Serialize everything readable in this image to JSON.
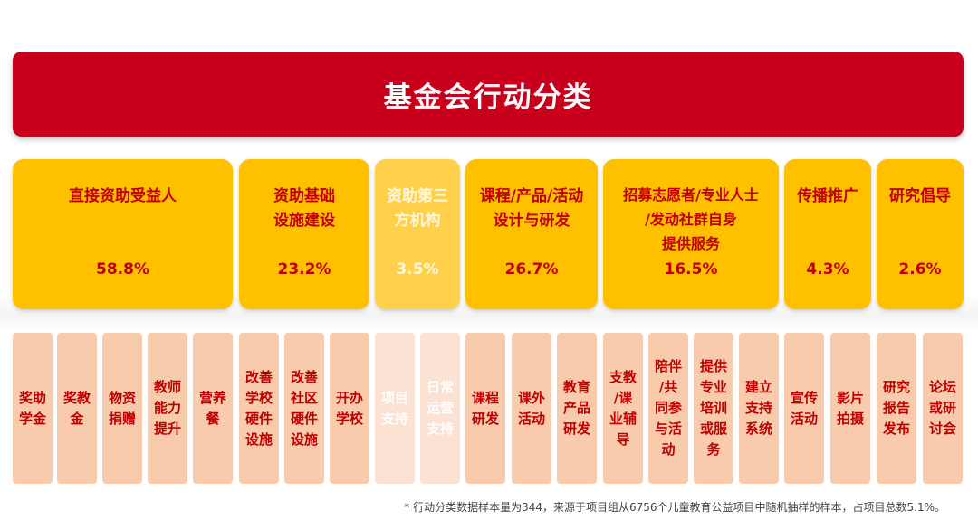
{
  "title": "基金会行动分类",
  "categories": [
    {
      "name": "直接资助受益人",
      "pct": "58.8%"
    },
    {
      "name": "资助基础\n设施建设",
      "pct": "23.2%"
    },
    {
      "name": "资助第三\n方机构",
      "pct": "3.5%"
    },
    {
      "name": "课程/产品/活动\n设计与研发",
      "pct": "26.7%"
    },
    {
      "name": "招募志愿者/专业人士\n/发动社群自身\n提供服务",
      "pct": "16.5%"
    },
    {
      "name": "传播推广",
      "pct": "4.3%"
    },
    {
      "name": "研究倡导",
      "pct": "2.6%"
    }
  ],
  "subitems": [
    "奖助\n学金",
    "奖教\n金",
    "物资\n捐赠",
    "教师\n能力\n提升",
    "营养\n餐",
    "改善\n学校\n硬件\n设施",
    "改善\n社区\n硬件\n设施",
    "开办\n学校",
    "项目\n支持",
    "日常\n运营\n支持",
    "课程\n研发",
    "课外\n活动",
    "教育\n产品\n研发",
    "支教\n/课\n业辅\n导",
    "陪伴\n/共\n同参\n与活\n动",
    "提供\n专业\n培训\n或服\n务",
    "建立\n支持\n系统",
    "宣传\n活动",
    "影片\n拍摄",
    "研究\n报告\n发布",
    "论坛\n或研\n讨会"
  ],
  "footnote": "* 行动分类数据样本量为344，来源于项目组从6756个儿童教育公益项目中随机抽样的样本，占项目总数5.1%。",
  "colors": {
    "title_bg": "#c8001b",
    "category_bg": "#ffc000",
    "subitem_bg": "#f8cbad",
    "text_red": "#c00000"
  }
}
